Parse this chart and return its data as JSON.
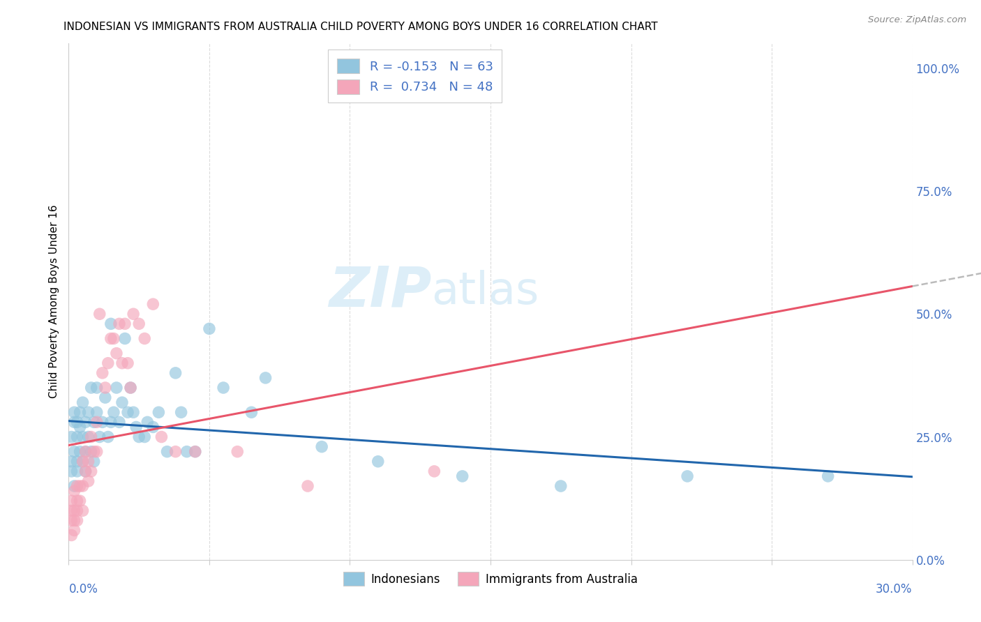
{
  "title": "INDONESIAN VS IMMIGRANTS FROM AUSTRALIA CHILD POVERTY AMONG BOYS UNDER 16 CORRELATION CHART",
  "source": "Source: ZipAtlas.com",
  "ylabel": "Child Poverty Among Boys Under 16",
  "legend_indonesians": "Indonesians",
  "legend_immigrants": "Immigrants from Australia",
  "R_indonesians": -0.153,
  "N_indonesians": 63,
  "R_immigrants": 0.734,
  "N_immigrants": 48,
  "color_indonesians": "#92c5de",
  "color_immigrants": "#f4a6ba",
  "trendline_indonesians": "#2166ac",
  "trendline_immigrants": "#e8556a",
  "watermark_zip": "ZIP",
  "watermark_atlas": "atlas",
  "watermark_color": "#ddeef8",
  "background_color": "#ffffff",
  "xlim": [
    0.0,
    0.3
  ],
  "ylim": [
    0.0,
    1.05
  ],
  "right_ytick_vals": [
    0.0,
    0.25,
    0.5,
    0.75,
    1.0
  ],
  "right_ytick_labels": [
    "0.0%",
    "25.0%",
    "50.0%",
    "75.0%",
    "100.0%"
  ],
  "indonesians_x": [
    0.001,
    0.001,
    0.001,
    0.002,
    0.002,
    0.002,
    0.002,
    0.003,
    0.003,
    0.003,
    0.003,
    0.004,
    0.004,
    0.004,
    0.005,
    0.005,
    0.005,
    0.006,
    0.006,
    0.006,
    0.007,
    0.007,
    0.008,
    0.008,
    0.009,
    0.009,
    0.01,
    0.01,
    0.011,
    0.012,
    0.013,
    0.014,
    0.015,
    0.015,
    0.016,
    0.017,
    0.018,
    0.019,
    0.02,
    0.021,
    0.022,
    0.023,
    0.024,
    0.025,
    0.027,
    0.028,
    0.03,
    0.032,
    0.035,
    0.038,
    0.04,
    0.042,
    0.045,
    0.05,
    0.055,
    0.065,
    0.07,
    0.09,
    0.11,
    0.14,
    0.175,
    0.22,
    0.27
  ],
  "indonesians_y": [
    0.2,
    0.25,
    0.18,
    0.22,
    0.28,
    0.15,
    0.3,
    0.2,
    0.25,
    0.28,
    0.18,
    0.22,
    0.3,
    0.27,
    0.25,
    0.2,
    0.32,
    0.28,
    0.22,
    0.18,
    0.3,
    0.25,
    0.35,
    0.22,
    0.28,
    0.2,
    0.3,
    0.35,
    0.25,
    0.28,
    0.33,
    0.25,
    0.48,
    0.28,
    0.3,
    0.35,
    0.28,
    0.32,
    0.45,
    0.3,
    0.35,
    0.3,
    0.27,
    0.25,
    0.25,
    0.28,
    0.27,
    0.3,
    0.22,
    0.38,
    0.3,
    0.22,
    0.22,
    0.47,
    0.35,
    0.3,
    0.37,
    0.23,
    0.2,
    0.17,
    0.15,
    0.17,
    0.17
  ],
  "immigrants_x": [
    0.001,
    0.001,
    0.001,
    0.001,
    0.002,
    0.002,
    0.002,
    0.002,
    0.003,
    0.003,
    0.003,
    0.003,
    0.004,
    0.004,
    0.005,
    0.005,
    0.005,
    0.006,
    0.006,
    0.007,
    0.007,
    0.008,
    0.008,
    0.009,
    0.01,
    0.01,
    0.011,
    0.012,
    0.013,
    0.014,
    0.015,
    0.016,
    0.017,
    0.018,
    0.019,
    0.02,
    0.021,
    0.022,
    0.023,
    0.025,
    0.027,
    0.03,
    0.033,
    0.038,
    0.045,
    0.06,
    0.085,
    0.13
  ],
  "immigrants_y": [
    0.08,
    0.12,
    0.1,
    0.05,
    0.1,
    0.14,
    0.08,
    0.06,
    0.12,
    0.15,
    0.1,
    0.08,
    0.15,
    0.12,
    0.2,
    0.15,
    0.1,
    0.18,
    0.22,
    0.2,
    0.16,
    0.25,
    0.18,
    0.22,
    0.28,
    0.22,
    0.5,
    0.38,
    0.35,
    0.4,
    0.45,
    0.45,
    0.42,
    0.48,
    0.4,
    0.48,
    0.4,
    0.35,
    0.5,
    0.48,
    0.45,
    0.52,
    0.25,
    0.22,
    0.22,
    0.22,
    0.15,
    0.18
  ],
  "grid_color": "#cccccc",
  "title_fontsize": 11,
  "axis_label_color": "#4472c4",
  "legend_text_color": "#4472c4"
}
